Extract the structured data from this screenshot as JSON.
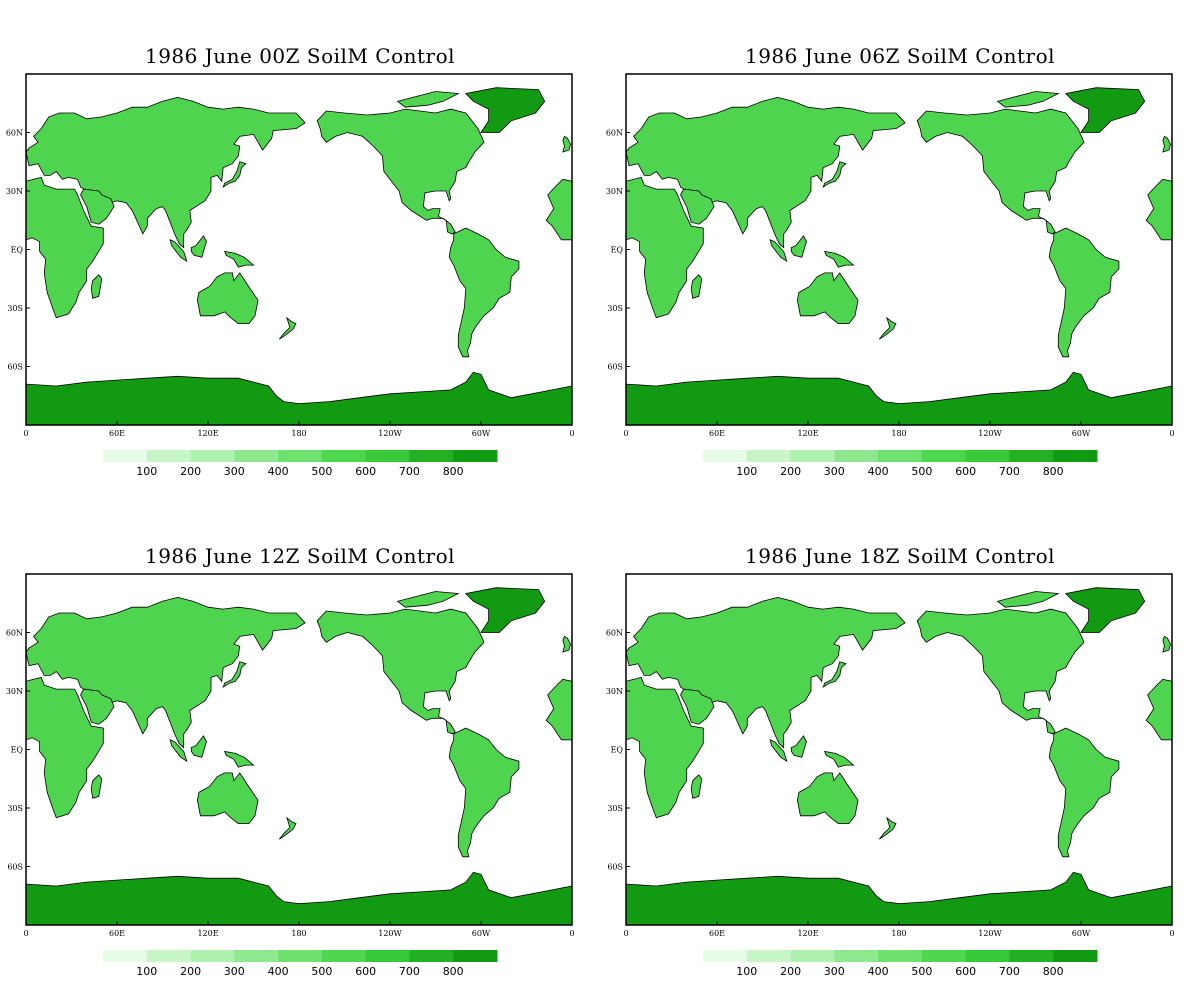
{
  "panels": [
    {
      "title": "1986 June  00Z SoilM Control"
    },
    {
      "title": "1986  June 06Z SoilM Control"
    },
    {
      "title": "1986  June 12Z SoilM Control"
    },
    {
      "title": "1986  June 18Z SoilM Control"
    }
  ],
  "map": {
    "lon_labels": [
      "0",
      "60E",
      "120E",
      "180",
      "120W",
      "60W",
      "0"
    ],
    "lat_labels": [
      "60N",
      "30N",
      "EQ",
      "30S",
      "60S"
    ],
    "lat_values": [
      60,
      30,
      0,
      -30,
      -60
    ],
    "lon_values": [
      0,
      60,
      120,
      180,
      240,
      300,
      360
    ],
    "lat_range": [
      -90,
      90
    ],
    "lon_range": [
      0,
      360
    ],
    "ocean_color": "#ffffff",
    "land_color": "#4fd44f",
    "ice_color": "#129b12"
  },
  "colorbar": {
    "labels": [
      "100",
      "200",
      "300",
      "400",
      "500",
      "600",
      "700",
      "800"
    ],
    "colors": [
      "#e6fce6",
      "#c8f5c8",
      "#aef0ae",
      "#8ee88e",
      "#6de06d",
      "#4ed64e",
      "#38c838",
      "#24b024",
      "#129b12"
    ]
  }
}
